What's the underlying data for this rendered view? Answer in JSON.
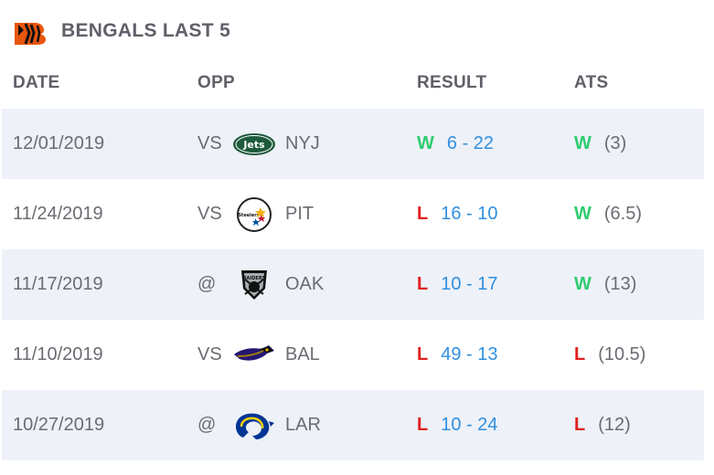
{
  "header": {
    "title": "BENGALS LAST 5",
    "logo_icon": "bengals-logo-icon"
  },
  "columns": {
    "date": "DATE",
    "opp": "OPP",
    "result": "RESULT",
    "ats": "ATS"
  },
  "colors": {
    "win": "#2ecc71",
    "loss": "#e02020",
    "score": "#2f8fe0",
    "row_shade": "#eef1f8"
  },
  "games": [
    {
      "date": "12/01/2019",
      "home_away": "VS",
      "opp": "NYJ",
      "opp_icon": "jets-logo-icon",
      "result": "W",
      "score": "6 - 22",
      "ats": "W",
      "spread": "(3)"
    },
    {
      "date": "11/24/2019",
      "home_away": "VS",
      "opp": "PIT",
      "opp_icon": "steelers-logo-icon",
      "result": "L",
      "score": "16 - 10",
      "ats": "W",
      "spread": "(6.5)"
    },
    {
      "date": "11/17/2019",
      "home_away": "@",
      "opp": "OAK",
      "opp_icon": "raiders-logo-icon",
      "result": "L",
      "score": "10 - 17",
      "ats": "W",
      "spread": "(13)"
    },
    {
      "date": "11/10/2019",
      "home_away": "VS",
      "opp": "BAL",
      "opp_icon": "ravens-logo-icon",
      "result": "L",
      "score": "49 - 13",
      "ats": "L",
      "spread": "(10.5)"
    },
    {
      "date": "10/27/2019",
      "home_away": "@",
      "opp": "LAR",
      "opp_icon": "rams-logo-icon",
      "result": "L",
      "score": "10 - 24",
      "ats": "L",
      "spread": "(12)"
    }
  ]
}
